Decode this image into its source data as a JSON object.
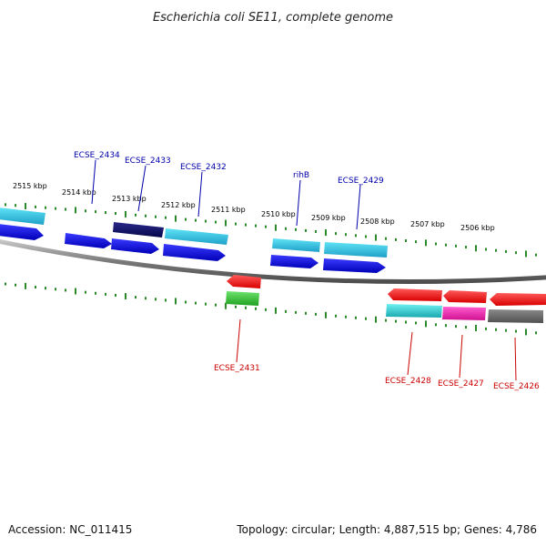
{
  "title": "Escherichia coli SE11, complete genome",
  "footer": {
    "accession": "Accession: NC_011415",
    "stats": "Topology: circular; Length: 4,887,515 bp; Genes: 4,786"
  },
  "colors": {
    "forward_label": "#0000aa",
    "reverse_label": "#cc0000",
    "tick": "#2a8a2a",
    "backbone": "#7a7a7a"
  },
  "scale": {
    "labels": [
      {
        "text": "2515 kbp",
        "kbp": 2515
      },
      {
        "text": "2514 kbp",
        "kbp": 2514
      },
      {
        "text": "2513 kbp",
        "kbp": 2513
      },
      {
        "text": "2512 kbp",
        "kbp": 2512
      },
      {
        "text": "2511 kbp",
        "kbp": 2511
      },
      {
        "text": "2510 kbp",
        "kbp": 2510
      },
      {
        "text": "2509 kbp",
        "kbp": 2509
      },
      {
        "text": "2508 kbp",
        "kbp": 2508
      },
      {
        "text": "2507 kbp",
        "kbp": 2507
      },
      {
        "text": "2506 kbp",
        "kbp": 2506
      }
    ]
  },
  "gene_labels": [
    {
      "text": "ECSE_2434",
      "strand": "forward"
    },
    {
      "text": "ECSE_2433",
      "strand": "forward"
    },
    {
      "text": "ECSE_2432",
      "strand": "forward"
    },
    {
      "text": "rihB",
      "strand": "forward"
    },
    {
      "text": "ECSE_2429",
      "strand": "forward"
    },
    {
      "text": "ECSE_2431",
      "strand": "reverse"
    },
    {
      "text": "ECSE_2428",
      "strand": "reverse"
    },
    {
      "text": "ECSE_2427",
      "strand": "reverse"
    },
    {
      "text": "ECSE_2426",
      "strand": "reverse"
    }
  ]
}
